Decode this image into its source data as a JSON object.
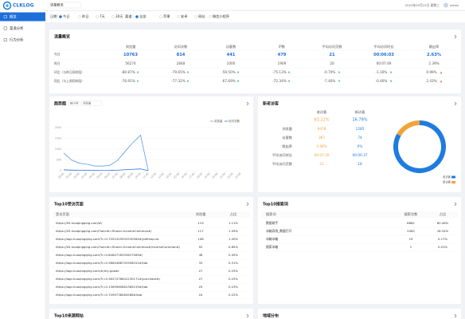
{
  "topbar": {
    "logo": "CLKLOG",
    "app": "流量概览",
    "date": "2023年03月22日 星期三",
    "user": "admin"
  },
  "sidebar": [
    "概览",
    "渠道分析",
    "行为分析"
  ],
  "filters": {
    "date_label": "日期:",
    "date_options": [
      "今日",
      "昨日",
      "7天",
      "30天"
    ],
    "channel_label": "渠道:",
    "channel_options": [
      "全部",
      "苹果",
      "安卓",
      "网站",
      "微信小程序"
    ]
  },
  "overview": {
    "title": "流量概览",
    "columns": [
      "浏览量",
      "访问次数",
      "访客数",
      "IP数",
      "平均访问页数",
      "平均访问时长",
      "跳出率"
    ],
    "rows": [
      {
        "label": "今日",
        "cells": [
          "10763",
          "814",
          "441",
          "479",
          "21",
          "00:06:03",
          "2.63%"
        ]
      },
      {
        "label": "昨日",
        "cells": [
          "56274",
          "2848",
          "1000",
          "1909",
          "20",
          "00:07:49",
          "2.39%"
        ]
      },
      {
        "label": "环比（与昨日同时段）",
        "cells": [
          "-80.87%",
          "-79.65%",
          "-59.50%",
          "-75.13%",
          "-0.70%",
          "-1.16%",
          "0.99%"
        ]
      },
      {
        "label": "同比（与上周同时段）",
        "cells": [
          "-76.91%",
          "-77.32%",
          "-67.69%",
          "-72.34%",
          "-7.40%",
          "-0.40%",
          "2.43%"
        ]
      }
    ]
  },
  "trend": {
    "title": "趋势图",
    "controls": [
      "按小时",
      "浏览量"
    ],
    "chart_data": {
      "type": "line",
      "categories": [
        "00:00",
        "01:00",
        "02:00",
        "03:00",
        "04:00",
        "05:00",
        "06:00",
        "07:00",
        "08:00",
        "09:00",
        "10:00",
        "11:00",
        "12:00",
        "13:00",
        "14:00",
        "15:00",
        "16:00",
        "17:00",
        "18:00",
        "19:00",
        "20:00",
        "21:00",
        "22:00",
        "23:00"
      ],
      "series": [
        {
          "name": "浏览量",
          "color": "#5b9bf0",
          "values": [
            820,
            500,
            350,
            300,
            220,
            210,
            250,
            480,
            900,
            1300,
            1650,
            0,
            null,
            null,
            null,
            null,
            null,
            null,
            null,
            null,
            null,
            null,
            null,
            null
          ]
        },
        {
          "name": "访问次数",
          "color": "#2f6fd6",
          "values": [
            40,
            25,
            18,
            15,
            11,
            10,
            12,
            24,
            45,
            65,
            82,
            0,
            null,
            null,
            null,
            null,
            null,
            null,
            null,
            null,
            null,
            null,
            null,
            null
          ]
        }
      ],
      "ylim": [
        0,
        2000
      ],
      "yticks": [
        0,
        500,
        1000,
        1500,
        2000
      ],
      "grid": true,
      "legend": "top-right"
    }
  },
  "visitors": {
    "title": "新老访客",
    "columns": [
      {
        "name": "老访客",
        "share": "83.22%"
      },
      {
        "name": "新访客",
        "share": "16.78%"
      }
    ],
    "rows": [
      {
        "label": "浏览量",
        "cells": [
          "9478",
          "1285"
        ]
      },
      {
        "label": "访客数",
        "cells": [
          "367",
          "74"
        ]
      },
      {
        "label": "跳出率",
        "cells": [
          "2.98%",
          "0%"
        ]
      },
      {
        "label": "平均访问时长",
        "cells": [
          "00:07:20",
          "00:00:37"
        ]
      },
      {
        "label": "平均访问页数",
        "cells": [
          "21",
          "18"
        ]
      }
    ],
    "chart_data": {
      "type": "pie",
      "categories": [
        "老访客",
        "新访客"
      ],
      "values": [
        83.22,
        16.78
      ],
      "colors": [
        "#1f7be0",
        "#f2a33a"
      ],
      "legend": "bottom-right"
    }
  },
  "top_pages": {
    "title": "Top10受访页面",
    "header": [
      "受访页面",
      "浏览量",
      "占比"
    ],
    "rows": [
      [
        "https://h5.huoqingqing.com/#/",
        "119",
        "1.11%"
      ],
      [
        "https://h5.huoqingqing.com/?secret=Share=IncomeCommon#/",
        "117",
        "1.09%"
      ],
      [
        "https://app.huoqingqing.com/?i=0.7052425502530564#/pdfmap.lst",
        "108",
        "1.00%"
      ],
      [
        "https://h5.huoqingqing.com/?secret=Share=IncomeCommon#/incomeCommon#/",
        "92",
        "0.85%"
      ],
      [
        "https://app.huoqingqing.com/?i=0.8464716352627069#/",
        "48",
        "0.45%"
      ],
      [
        "https://app.huoqingqing.com/?i=0.3664488752958252#/tab",
        "33",
        "0.31%"
      ],
      [
        "https://app.huoqingqing.com/#/my-goods",
        "27",
        "0.25%"
      ],
      [
        "https://app.huoqingqing.com/?i=0.3627478641230171#/purchase#/",
        "27",
        "0.25%"
      ],
      [
        "https://app.huoqingqing.com/?i=0.1569960681389159#/tab",
        "25",
        "0.23%"
      ],
      [
        "https://app.huoqingqing.com/?i=0.7099738064568#/tab",
        "24",
        "0.22%"
      ]
    ]
  },
  "top_search": {
    "title": "Top10搜索词",
    "header": [
      "搜索词",
      "搜索次数",
      "占比"
    ],
    "rows": [
      [
        "数据助手",
        "6682",
        "60.46%"
      ],
      [
        "冰箱双线_数据打开",
        "2062",
        "18.34%"
      ],
      [
        "冰箱冰箱",
        "19",
        "0.17%"
      ],
      [
        "搜索冰箱",
        "1",
        "0.01%"
      ]
    ]
  },
  "bottom_cards": [
    "Top10来源网站",
    "地域分布"
  ]
}
